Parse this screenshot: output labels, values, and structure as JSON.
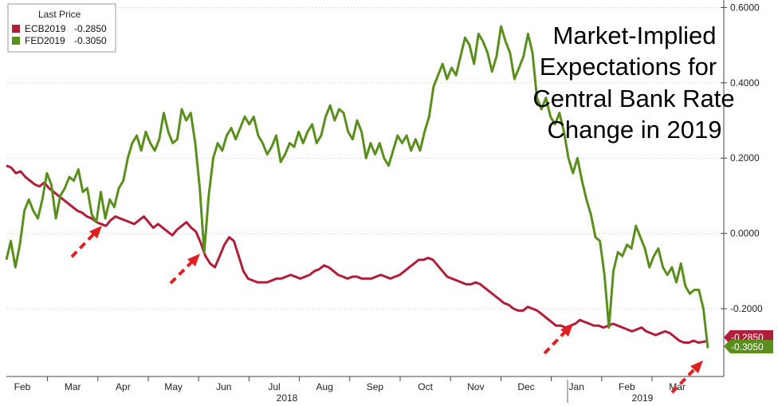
{
  "chart_data": {
    "type": "line",
    "title_lines": [
      "Market-Implied",
      "Expectations for",
      "Central Bank Rate",
      "Change in 2019"
    ],
    "legend": {
      "title": "Last Price",
      "entries": [
        {
          "label": "ECB2019",
          "value": "-0.2850"
        },
        {
          "label": "FED2019",
          "value": "-0.3050"
        }
      ]
    },
    "y_ticks": [
      "0.6000",
      "0.4000",
      "0.2000",
      "0.0000",
      "-0.2000"
    ],
    "ylim": [
      -0.38,
      0.62
    ],
    "x_month_labels": [
      "Feb",
      "Mar",
      "Apr",
      "May",
      "Jun",
      "Jul",
      "Aug",
      "Sep",
      "Oct",
      "Nov",
      "Dec",
      "Jan",
      "Feb",
      "Mar"
    ],
    "year_labels": [
      "2018",
      "2019"
    ],
    "last_value_labels": [
      "-0.2850",
      "-0.3050"
    ],
    "colors": {
      "ECB2019": "#b01e3a",
      "FED2019": "#5a8f1e",
      "arrow": "#e02020"
    },
    "series": [
      {
        "name": "ECB2019",
        "values": [
          0.18,
          0.175,
          0.16,
          0.165,
          0.15,
          0.14,
          0.13,
          0.125,
          0.135,
          0.12,
          0.11,
          0.1,
          0.09,
          0.08,
          0.07,
          0.06,
          0.055,
          0.045,
          0.04,
          0.03,
          0.025,
          0.02,
          0.035,
          0.045,
          0.04,
          0.035,
          0.03,
          0.025,
          0.035,
          0.045,
          0.03,
          0.015,
          0.025,
          0.015,
          0.005,
          -0.005,
          0.01,
          0.02,
          0.03,
          0.015,
          0.005,
          -0.025,
          -0.06,
          -0.08,
          -0.09,
          -0.06,
          -0.03,
          -0.01,
          -0.02,
          -0.06,
          -0.1,
          -0.12,
          -0.125,
          -0.13,
          -0.13,
          -0.13,
          -0.125,
          -0.12,
          -0.12,
          -0.115,
          -0.11,
          -0.115,
          -0.12,
          -0.115,
          -0.11,
          -0.1,
          -0.095,
          -0.085,
          -0.09,
          -0.1,
          -0.11,
          -0.115,
          -0.12,
          -0.115,
          -0.115,
          -0.12,
          -0.12,
          -0.12,
          -0.115,
          -0.11,
          -0.115,
          -0.12,
          -0.115,
          -0.11,
          -0.1,
          -0.09,
          -0.08,
          -0.07,
          -0.07,
          -0.065,
          -0.07,
          -0.085,
          -0.1,
          -0.115,
          -0.12,
          -0.125,
          -0.13,
          -0.135,
          -0.135,
          -0.13,
          -0.135,
          -0.145,
          -0.155,
          -0.165,
          -0.175,
          -0.185,
          -0.19,
          -0.2,
          -0.205,
          -0.205,
          -0.195,
          -0.2,
          -0.205,
          -0.215,
          -0.225,
          -0.235,
          -0.245,
          -0.245,
          -0.25,
          -0.245,
          -0.24,
          -0.23,
          -0.235,
          -0.24,
          -0.245,
          -0.245,
          -0.25,
          -0.245,
          -0.24,
          -0.245,
          -0.25,
          -0.255,
          -0.26,
          -0.255,
          -0.25,
          -0.26,
          -0.265,
          -0.27,
          -0.265,
          -0.26,
          -0.265,
          -0.275,
          -0.285,
          -0.29,
          -0.29,
          -0.285,
          -0.29,
          -0.288,
          -0.285
        ]
      },
      {
        "name": "FED2019",
        "values": [
          -0.07,
          -0.02,
          -0.09,
          -0.03,
          0.06,
          0.09,
          0.06,
          0.04,
          0.09,
          0.16,
          0.13,
          0.04,
          0.1,
          0.12,
          0.15,
          0.14,
          0.17,
          0.11,
          0.12,
          0.05,
          0.03,
          0.11,
          0.04,
          0.09,
          0.07,
          0.12,
          0.14,
          0.2,
          0.24,
          0.26,
          0.22,
          0.27,
          0.24,
          0.22,
          0.25,
          0.32,
          0.27,
          0.24,
          0.25,
          0.33,
          0.3,
          0.32,
          0.24,
          0.12,
          -0.05,
          0.1,
          0.2,
          0.24,
          0.22,
          0.26,
          0.28,
          0.25,
          0.28,
          0.31,
          0.29,
          0.31,
          0.26,
          0.24,
          0.21,
          0.23,
          0.26,
          0.19,
          0.21,
          0.24,
          0.23,
          0.27,
          0.24,
          0.27,
          0.29,
          0.24,
          0.26,
          0.31,
          0.34,
          0.3,
          0.33,
          0.32,
          0.27,
          0.25,
          0.3,
          0.27,
          0.2,
          0.24,
          0.21,
          0.24,
          0.2,
          0.18,
          0.22,
          0.26,
          0.24,
          0.26,
          0.22,
          0.25,
          0.22,
          0.27,
          0.31,
          0.39,
          0.42,
          0.45,
          0.41,
          0.44,
          0.42,
          0.47,
          0.52,
          0.5,
          0.45,
          0.53,
          0.51,
          0.48,
          0.43,
          0.47,
          0.55,
          0.51,
          0.48,
          0.41,
          0.44,
          0.47,
          0.53,
          0.48,
          0.36,
          0.33,
          0.36,
          0.31,
          0.29,
          0.32,
          0.27,
          0.2,
          0.16,
          0.2,
          0.14,
          0.09,
          0.05,
          -0.01,
          -0.02,
          -0.11,
          -0.25,
          -0.1,
          -0.05,
          -0.06,
          -0.03,
          -0.04,
          0.02,
          -0.01,
          -0.04,
          -0.09,
          -0.06,
          -0.04,
          -0.09,
          -0.11,
          -0.09,
          -0.13,
          -0.08,
          -0.14,
          -0.16,
          -0.15,
          -0.15,
          -0.2,
          -0.305
        ]
      }
    ]
  }
}
